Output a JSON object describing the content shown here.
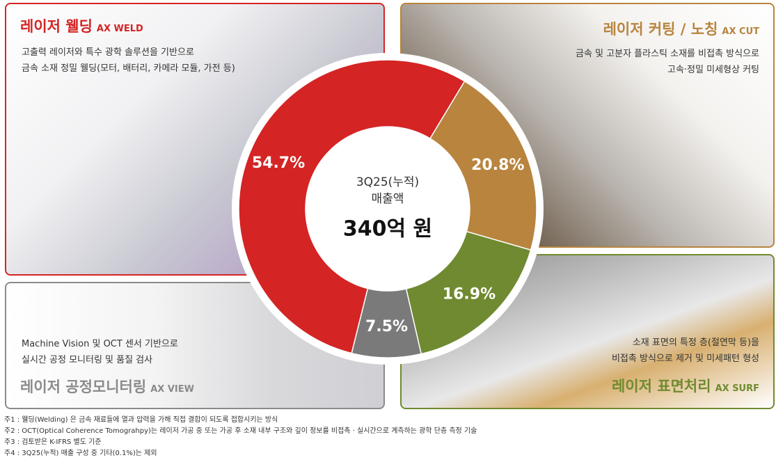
{
  "chart_data": {
    "type": "pie",
    "values": [
      54.7,
      20.8,
      16.9,
      7.5
    ],
    "value_labels": [
      "54.7%",
      "20.8%",
      "16.9%",
      "7.5%"
    ],
    "colors": [
      "#d42424",
      "#b8843e",
      "#6f8a30",
      "#7a7a7a"
    ],
    "donut": true,
    "center_text": [
      "3Q25(누적)",
      "매출액",
      "340억 원"
    ]
  },
  "panels": [
    {
      "title": "레이저 웰딩",
      "tag": "AX WELD",
      "description": [
        "고출력 레이저와 특수 광학 솔루션을 기반으로",
        "금속 소재 정밀 웰딩(모터, 배터리, 카메라 모듈, 가전 등)"
      ]
    },
    {
      "title": "레이저 커팅 / 노칭",
      "tag": "AX CUT",
      "description": [
        "금속 및 고분자 플라스틱 소재를 비접촉 방식으로",
        "고속·정밀 미세형상 커팅"
      ]
    },
    {
      "title": "레이저 공정모니터링",
      "tag": "AX VIEW",
      "description": [
        "Machine Vision 및 OCT 센서 기반으로",
        "실시간 공정 모니터링 및 품질 검사"
      ]
    },
    {
      "title": "레이저 표면처리",
      "tag": "AX SURF",
      "description": [
        "소재 표면의 특정 층(절연막 등)을",
        "비접촉 방식으로 제거 및 미세패턴 형성"
      ]
    }
  ],
  "notes": [
    "주1 : 웰딩(Welding) 은 금속 재료들에 열과 압력을 가해 직접 결합이 되도록 접합시키는 방식",
    "주2 : OCT(Optical Coherence Tomograhpy)는 레이저 가공 중 또는 가공 후 소재 내부 구조와 깊이 정보를 비접촉 · 실시간으로 계측하는 광학 단층 측정 기술",
    "주3 : 검토받은 K-IFRS 별도 기준",
    "주4 : 3Q25(누적) 매출 구성 중 기타(0.1%)는 제외"
  ]
}
